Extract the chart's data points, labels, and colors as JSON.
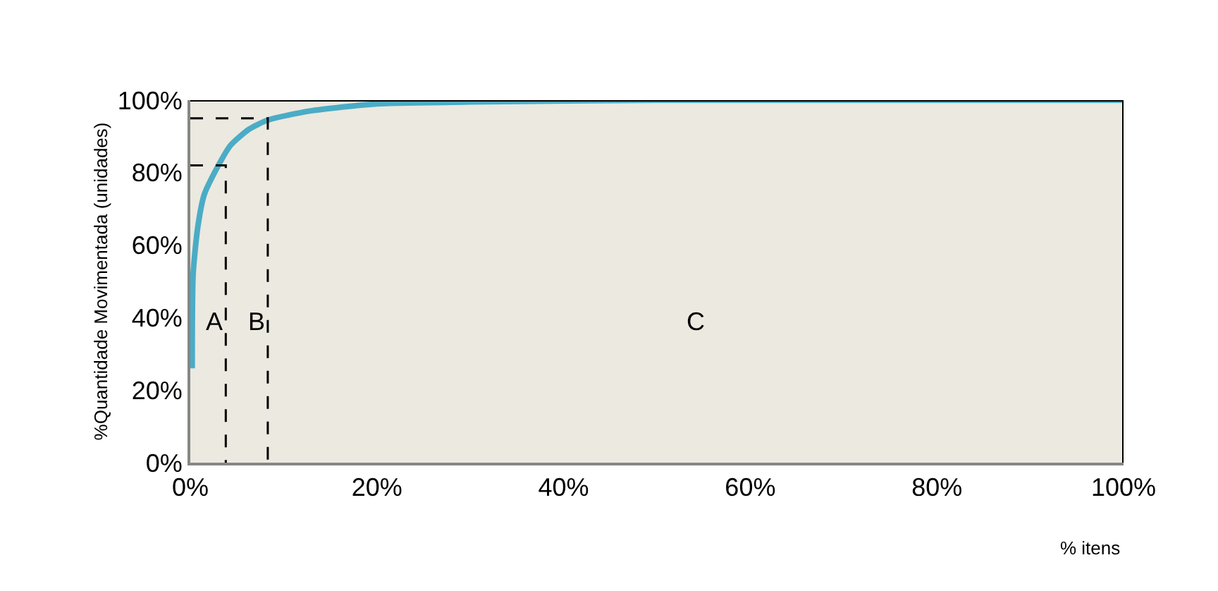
{
  "chart_data": {
    "type": "line",
    "xlabel": "% itens",
    "ylabel": "%Quantidade Movimentada (unidades)",
    "xlim": [
      0,
      100
    ],
    "ylim": [
      0,
      100
    ],
    "xticks": [
      {
        "value": 0,
        "label": "0%"
      },
      {
        "value": 20,
        "label": "20%"
      },
      {
        "value": 40,
        "label": "40%"
      },
      {
        "value": 60,
        "label": "60%"
      },
      {
        "value": 80,
        "label": "80%"
      },
      {
        "value": 100,
        "label": "100%"
      }
    ],
    "yticks": [
      {
        "value": 0,
        "label": "0%"
      },
      {
        "value": 20,
        "label": "20%"
      },
      {
        "value": 40,
        "label": "40%"
      },
      {
        "value": 60,
        "label": "60%"
      },
      {
        "value": 80,
        "label": "80%"
      },
      {
        "value": 100,
        "label": "100%"
      }
    ],
    "grid": false,
    "marker": "none",
    "series": [
      {
        "color": "#4bacc6",
        "line_style": "solid",
        "x": [
          0.2,
          0.3,
          0.8,
          1.5,
          2.8,
          4.3,
          6.3,
          8.3,
          12.8,
          20,
          30,
          50,
          100
        ],
        "values": [
          26,
          52,
          65,
          74,
          81,
          87.5,
          92,
          94.5,
          97,
          99,
          99.5,
          100,
          100
        ]
      },
      {
        "color": "#000000",
        "line_style": "dashed",
        "x": [
          0,
          3.8,
          3.8
        ],
        "values": [
          82,
          82,
          0
        ]
      },
      {
        "color": "#000000",
        "line_style": "dashed",
        "x": [
          0,
          8.3,
          8.3
        ],
        "values": [
          95,
          95,
          0
        ]
      }
    ],
    "annotations": [
      "A",
      "B",
      "C"
    ]
  }
}
